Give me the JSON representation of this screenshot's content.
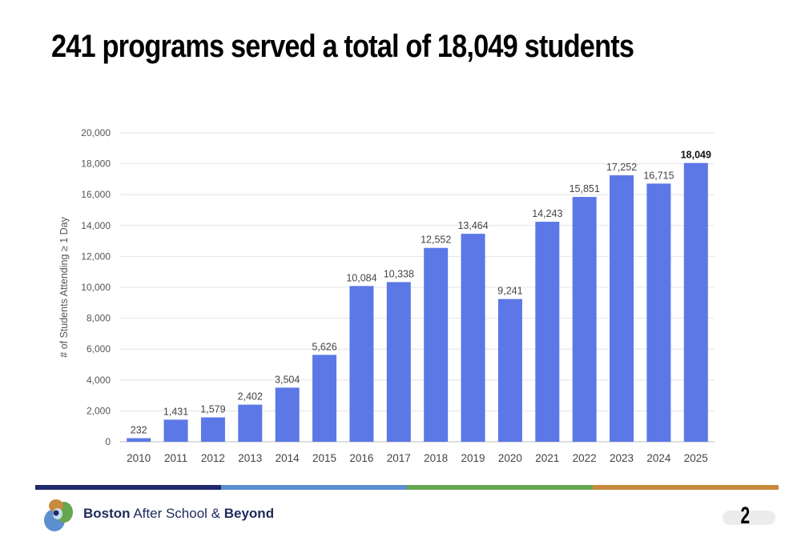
{
  "slide": {
    "title": "241 programs served a total of 18,049 students",
    "page_number": "2",
    "logo": {
      "brand1": "Boston",
      "brand2": " After School & ",
      "brand3": "Beyond"
    },
    "divider_colors": [
      "#1f2a6b",
      "#5b8fd0",
      "#66a650",
      "#c98a3e"
    ]
  },
  "chart_data": {
    "type": "bar",
    "title": "",
    "xlabel": "",
    "ylabel": "# of Students Attending ≥ 1 Day",
    "categories": [
      "2010",
      "2011",
      "2012",
      "2013",
      "2014",
      "2015",
      "2016",
      "2017",
      "2018",
      "2019",
      "2020",
      "2021",
      "2022",
      "2023",
      "2024",
      "2025"
    ],
    "values": [
      232,
      1431,
      1579,
      2402,
      3504,
      5626,
      10084,
      10338,
      12552,
      13464,
      9241,
      14243,
      15851,
      17252,
      16715,
      18049
    ],
    "data_labels": [
      "232",
      "1,431",
      "1,579",
      "2,402",
      "3,504",
      "5,626",
      "10,084",
      "10,338",
      "12,552",
      "13,464",
      "9,241",
      "14,243",
      "15,851",
      "17,252",
      "16,715",
      "18,049"
    ],
    "ylim": [
      0,
      20000
    ],
    "yticks": [
      0,
      2000,
      4000,
      6000,
      8000,
      10000,
      12000,
      14000,
      16000,
      18000,
      20000
    ],
    "ytick_labels": [
      "0",
      "2,000",
      "4,000",
      "6,000",
      "8,000",
      "10,000",
      "12,000",
      "14,000",
      "16,000",
      "18,000",
      "20,000"
    ],
    "grid": true,
    "bar_color": "#5b78e6",
    "highlight_last_label_bold": true
  }
}
